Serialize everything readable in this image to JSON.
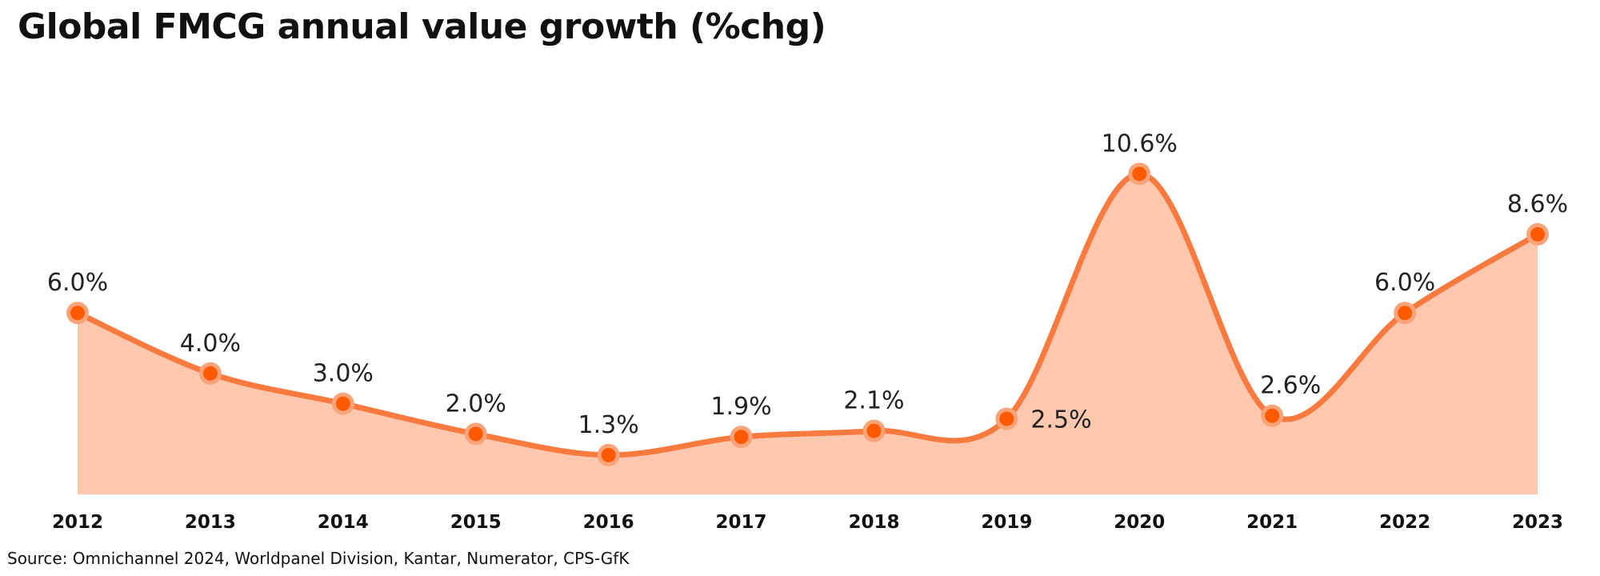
{
  "chart_data": {
    "type": "area",
    "title": "Global FMCG annual value growth (%chg)",
    "xlabel": "",
    "ylabel": "",
    "categories": [
      "2012",
      "2013",
      "2014",
      "2015",
      "2016",
      "2017",
      "2018",
      "2019",
      "2020",
      "2021",
      "2022",
      "2023"
    ],
    "values": [
      6.0,
      4.0,
      3.0,
      2.0,
      1.3,
      1.9,
      2.1,
      2.5,
      10.6,
      2.6,
      6.0,
      8.6
    ],
    "data_labels": [
      "6.0%",
      "4.0%",
      "3.0%",
      "2.0%",
      "1.3%",
      "1.9%",
      "2.1%",
      "2.5%",
      "10.6%",
      "2.6%",
      "6.0%",
      "8.6%"
    ],
    "ylim": [
      0,
      11
    ],
    "grid": false,
    "legend": "none",
    "colors": {
      "line": "#F97A3F",
      "area_fill": "#FDC8AE",
      "marker_halo": "#F8A37A",
      "marker_core": "#FF5A00"
    }
  },
  "source": "Source: Omnichannel 2024, Worldpanel Division, Kantar, Numerator, CPS-GfK"
}
